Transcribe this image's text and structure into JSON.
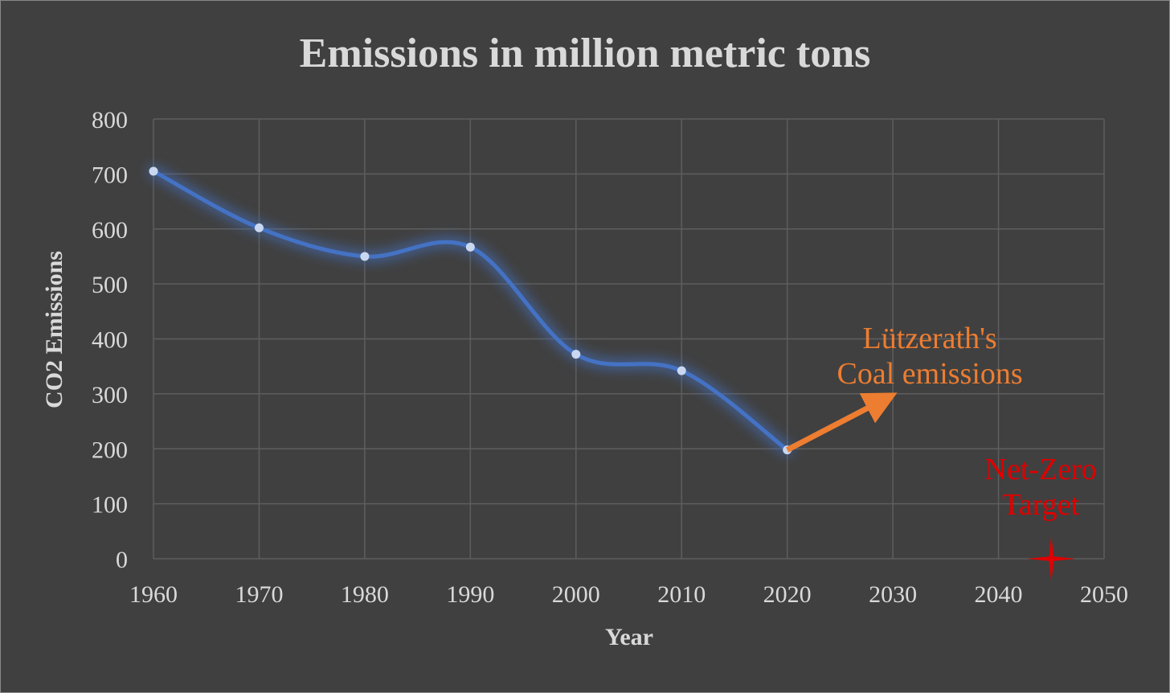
{
  "chart_data": {
    "type": "line",
    "title": "Emissions in million metric tons",
    "xlabel": "Year",
    "ylabel": "CO2 Emissions",
    "xlim": [
      1960,
      2050
    ],
    "ylim": [
      0,
      800
    ],
    "x_ticks": [
      1960,
      1970,
      1980,
      1990,
      2000,
      2010,
      2020,
      2030,
      2040,
      2050
    ],
    "y_ticks": [
      0,
      100,
      200,
      300,
      400,
      500,
      600,
      700,
      800
    ],
    "grid": true,
    "smooth": true,
    "series": [
      {
        "color": "#4472c4",
        "points": [
          {
            "x": 1960,
            "y": 705
          },
          {
            "x": 1970,
            "y": 602
          },
          {
            "x": 1980,
            "y": 550
          },
          {
            "x": 1990,
            "y": 567
          },
          {
            "x": 2000,
            "y": 372
          },
          {
            "x": 2010,
            "y": 342
          },
          {
            "x": 2020,
            "y": 198
          }
        ]
      }
    ],
    "annotations": [
      {
        "kind": "arrow",
        "text_lines": [
          "Lützerath's",
          "Coal emissions"
        ],
        "color": "#ed7d31",
        "from": {
          "x": 2020,
          "y": 198
        },
        "to": {
          "x": 2029,
          "y": 288
        },
        "label_anchor": {
          "x": 2033.5,
          "y": 383
        }
      },
      {
        "kind": "star",
        "text_lines": [
          "Net-Zero",
          "Target"
        ],
        "color": "#e00000",
        "at": {
          "x": 2045,
          "y": 0
        },
        "label_anchor": {
          "x": 2044,
          "y": 145
        }
      }
    ]
  },
  "colors": {
    "background": "#404040",
    "text": "#d9d9d9",
    "grid": "#5e5e5e",
    "line": "#4472c4",
    "marker": "#c9d7f0"
  }
}
